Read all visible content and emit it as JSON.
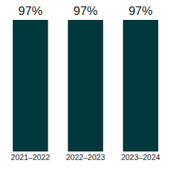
{
  "chart_data": {
    "type": "bar",
    "categories": [
      "2021–2022",
      "2022–2023",
      "2023–2024"
    ],
    "values": [
      97,
      97,
      97
    ],
    "value_labels": [
      "97%",
      "97%",
      "97%"
    ],
    "data_labels": true,
    "color": "#00383b",
    "ylim": [
      0,
      97
    ],
    "grid": false,
    "tick_labels": "x"
  }
}
